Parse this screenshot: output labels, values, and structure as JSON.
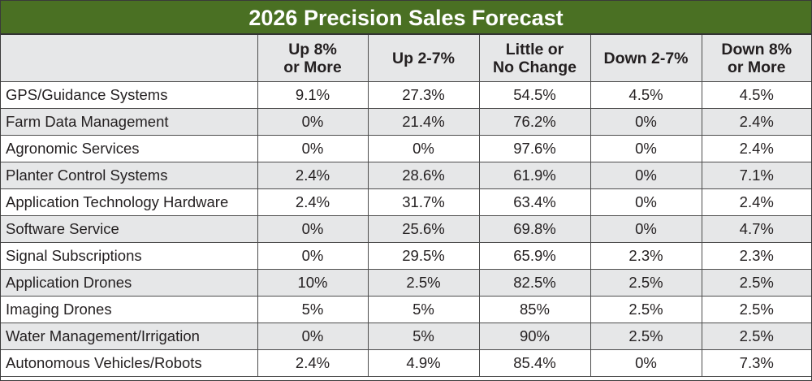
{
  "title": "2026 Precision Sales Forecast",
  "columns": [
    "",
    "Up 8%\nor More",
    "Up 2-7%",
    "Little or\nNo Change",
    "Down 2-7%",
    "Down 8%\nor More"
  ],
  "colors": {
    "title_bg": "#4a7023",
    "header_bg": "#e6e7e8",
    "alt_row_bg": "#e6e7e8"
  },
  "rows": [
    {
      "label": "GPS/Guidance Systems",
      "values": [
        "9.1%",
        "27.3%",
        "54.5%",
        "4.5%",
        "4.5%"
      ]
    },
    {
      "label": "Farm Data Management",
      "values": [
        "0%",
        "21.4%",
        "76.2%",
        "0%",
        "2.4%"
      ]
    },
    {
      "label": "Agronomic Services",
      "values": [
        "0%",
        "0%",
        "97.6%",
        "0%",
        "2.4%"
      ]
    },
    {
      "label": "Planter Control Systems",
      "values": [
        "2.4%",
        "28.6%",
        "61.9%",
        "0%",
        "7.1%"
      ]
    },
    {
      "label": "Application Technology Hardware",
      "values": [
        "2.4%",
        "31.7%",
        "63.4%",
        "0%",
        "2.4%"
      ]
    },
    {
      "label": "Software Service",
      "values": [
        "0%",
        "25.6%",
        "69.8%",
        "0%",
        "4.7%"
      ]
    },
    {
      "label": "Signal Subscriptions",
      "values": [
        "0%",
        "29.5%",
        "65.9%",
        "2.3%",
        "2.3%"
      ]
    },
    {
      "label": "Application Drones",
      "values": [
        "10%",
        "2.5%",
        "82.5%",
        "2.5%",
        "2.5%"
      ]
    },
    {
      "label": "Imaging Drones",
      "values": [
        "5%",
        "5%",
        "85%",
        "2.5%",
        "2.5%"
      ]
    },
    {
      "label": "Water Management/Irrigation",
      "values": [
        "0%",
        "5%",
        "90%",
        "2.5%",
        "2.5%"
      ]
    },
    {
      "label": "Autonomous Vehicles/Robots",
      "values": [
        "2.4%",
        "4.9%",
        "85.4%",
        "0%",
        "7.3%"
      ]
    }
  ]
}
